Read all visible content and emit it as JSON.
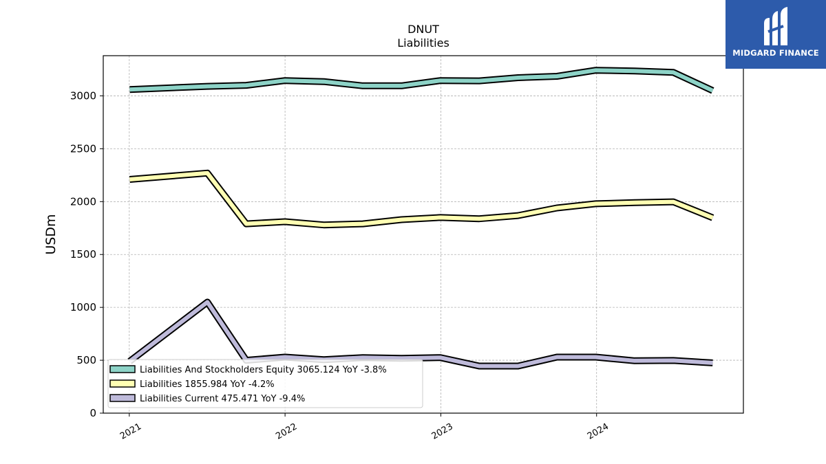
{
  "chart_data": {
    "type": "line",
    "title": "DNUT",
    "subtitle": "Liabilities",
    "ylabel": "USDm",
    "xlabel": "",
    "ylim": [
      0,
      3380
    ],
    "yticks": [
      0,
      500,
      1000,
      1500,
      2000,
      2500,
      3000
    ],
    "xticks": [
      "2021",
      "2022",
      "2023",
      "2024"
    ],
    "xlim": [
      "2020-11-01",
      "2024-12-10"
    ],
    "grid": true,
    "legend_position": "lower-left",
    "x": [
      "2021-01-02",
      "2021-07-03",
      "2021-10-02",
      "2022-01-01",
      "2022-04-02",
      "2022-07-02",
      "2022-10-01",
      "2022-12-31",
      "2023-04-01",
      "2023-07-01",
      "2023-09-30",
      "2023-12-30",
      "2024-03-30",
      "2024-06-29",
      "2024-09-29"
    ],
    "series": [
      {
        "name": "Liabilities And Stockholders Equity",
        "legend": "Liabilities And Stockholders Equity  3065.124 YoY -3.8%",
        "color": "#8dd3c7",
        "values": [
          3060,
          3090,
          3100,
          3145,
          3135,
          3095,
          3095,
          3145,
          3142,
          3172,
          3185,
          3242,
          3235,
          3222,
          3050
        ]
      },
      {
        "name": "Liabilities",
        "legend": "Liabilities  1855.984 YoY -4.2%",
        "color": "#ffffb3",
        "values": [
          2210,
          2270,
          1790,
          1810,
          1780,
          1790,
          1830,
          1850,
          1838,
          1868,
          1940,
          1980,
          1990,
          1998,
          1848
        ]
      },
      {
        "name": "Liabilities Current",
        "legend": "Liabilities Current  475.471 YoY -9.4%",
        "color": "#bebada",
        "values": [
          490,
          1050,
          500,
          530,
          505,
          525,
          518,
          525,
          445,
          445,
          530,
          530,
          495,
          498,
          475
        ]
      }
    ]
  },
  "brand": {
    "name": "MIDGARD FINANCE",
    "background": "#2d5bab"
  }
}
